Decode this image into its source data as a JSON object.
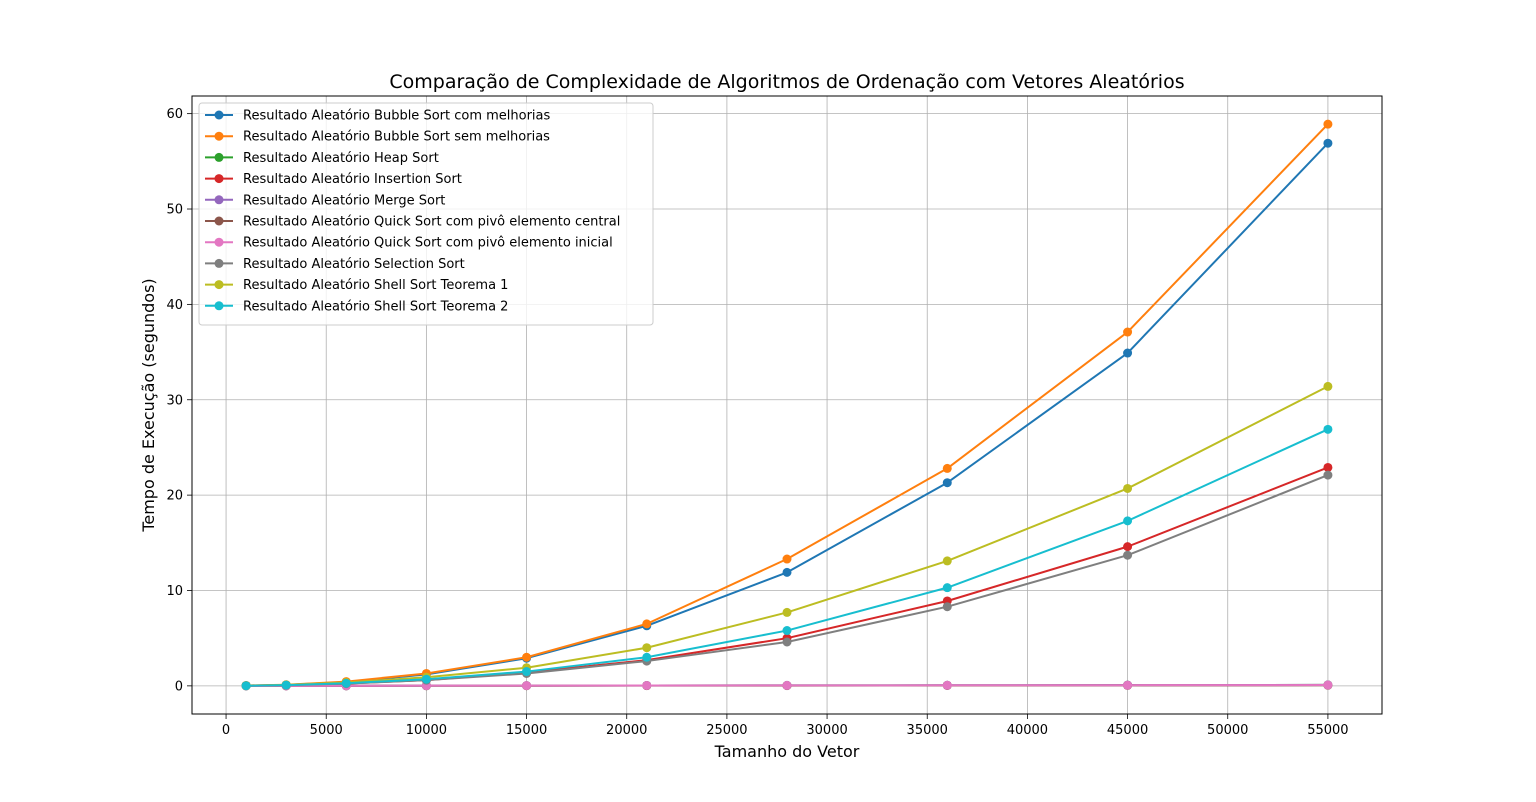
{
  "chart_data": {
    "type": "line",
    "title": "Comparação de Complexidade de Algoritmos de Ordenação com Vetores Aleatórios",
    "xlabel": "Tamanho do Vetor",
    "ylabel": "Tempo de Execução (segundos)",
    "xlim": [
      -1700,
      57700
    ],
    "ylim": [
      -2.95,
      61.85
    ],
    "xticks": [
      0,
      5000,
      10000,
      15000,
      20000,
      25000,
      30000,
      35000,
      40000,
      45000,
      50000,
      55000
    ],
    "yticks": [
      0,
      10,
      20,
      30,
      40,
      50,
      60
    ],
    "grid": true,
    "legend_position": "top-left",
    "x": [
      1000,
      3000,
      6000,
      10000,
      15000,
      21000,
      28000,
      36000,
      45000,
      55000
    ],
    "series": [
      {
        "name": "Resultado Aleatório Bubble Sort com melhorias",
        "color": "#1f77b4",
        "values": [
          0.03,
          0.1,
          0.4,
          1.2,
          2.9,
          6.3,
          11.9,
          21.3,
          34.9,
          56.9
        ]
      },
      {
        "name": "Resultado Aleatório Bubble Sort sem melhorias",
        "color": "#ff7f0e",
        "values": [
          0.04,
          0.12,
          0.45,
          1.3,
          3.0,
          6.5,
          13.3,
          22.8,
          37.1,
          58.9
        ]
      },
      {
        "name": "Resultado Aleatório Heap Sort",
        "color": "#2ca02c",
        "values": [
          0.002,
          0.006,
          0.01,
          0.02,
          0.03,
          0.04,
          0.05,
          0.06,
          0.08,
          0.1
        ]
      },
      {
        "name": "Resultado Aleatório Insertion Sort",
        "color": "#d62728",
        "values": [
          0.01,
          0.06,
          0.25,
          0.6,
          1.4,
          2.7,
          5.0,
          8.9,
          14.6,
          22.9
        ]
      },
      {
        "name": "Resultado Aleatório Merge Sort",
        "color": "#9467bd",
        "values": [
          0.002,
          0.005,
          0.01,
          0.02,
          0.03,
          0.04,
          0.05,
          0.06,
          0.08,
          0.1
        ]
      },
      {
        "name": "Resultado Aleatório Quick Sort com pivô elemento central",
        "color": "#8c564b",
        "values": [
          0.001,
          0.003,
          0.006,
          0.01,
          0.015,
          0.02,
          0.03,
          0.04,
          0.05,
          0.06
        ]
      },
      {
        "name": "Resultado Aleatório Quick Sort com pivô elemento inicial",
        "color": "#e377c2",
        "values": [
          0.002,
          0.005,
          0.01,
          0.02,
          0.03,
          0.04,
          0.05,
          0.06,
          0.07,
          0.09
        ]
      },
      {
        "name": "Resultado Aleatório Selection Sort",
        "color": "#7f7f7f",
        "values": [
          0.01,
          0.06,
          0.24,
          0.6,
          1.3,
          2.6,
          4.6,
          8.3,
          13.7,
          22.1
        ]
      },
      {
        "name": "Resultado Aleatório Shell Sort Teorema 1",
        "color": "#bcbd22",
        "values": [
          0.02,
          0.1,
          0.35,
          0.9,
          1.9,
          4.0,
          7.7,
          13.1,
          20.7,
          31.4
        ]
      },
      {
        "name": "Resultado Aleatório Shell Sort Teorema 2",
        "color": "#17becf",
        "values": [
          0.015,
          0.08,
          0.28,
          0.7,
          1.5,
          3.0,
          5.8,
          10.3,
          17.3,
          26.9
        ]
      }
    ]
  }
}
